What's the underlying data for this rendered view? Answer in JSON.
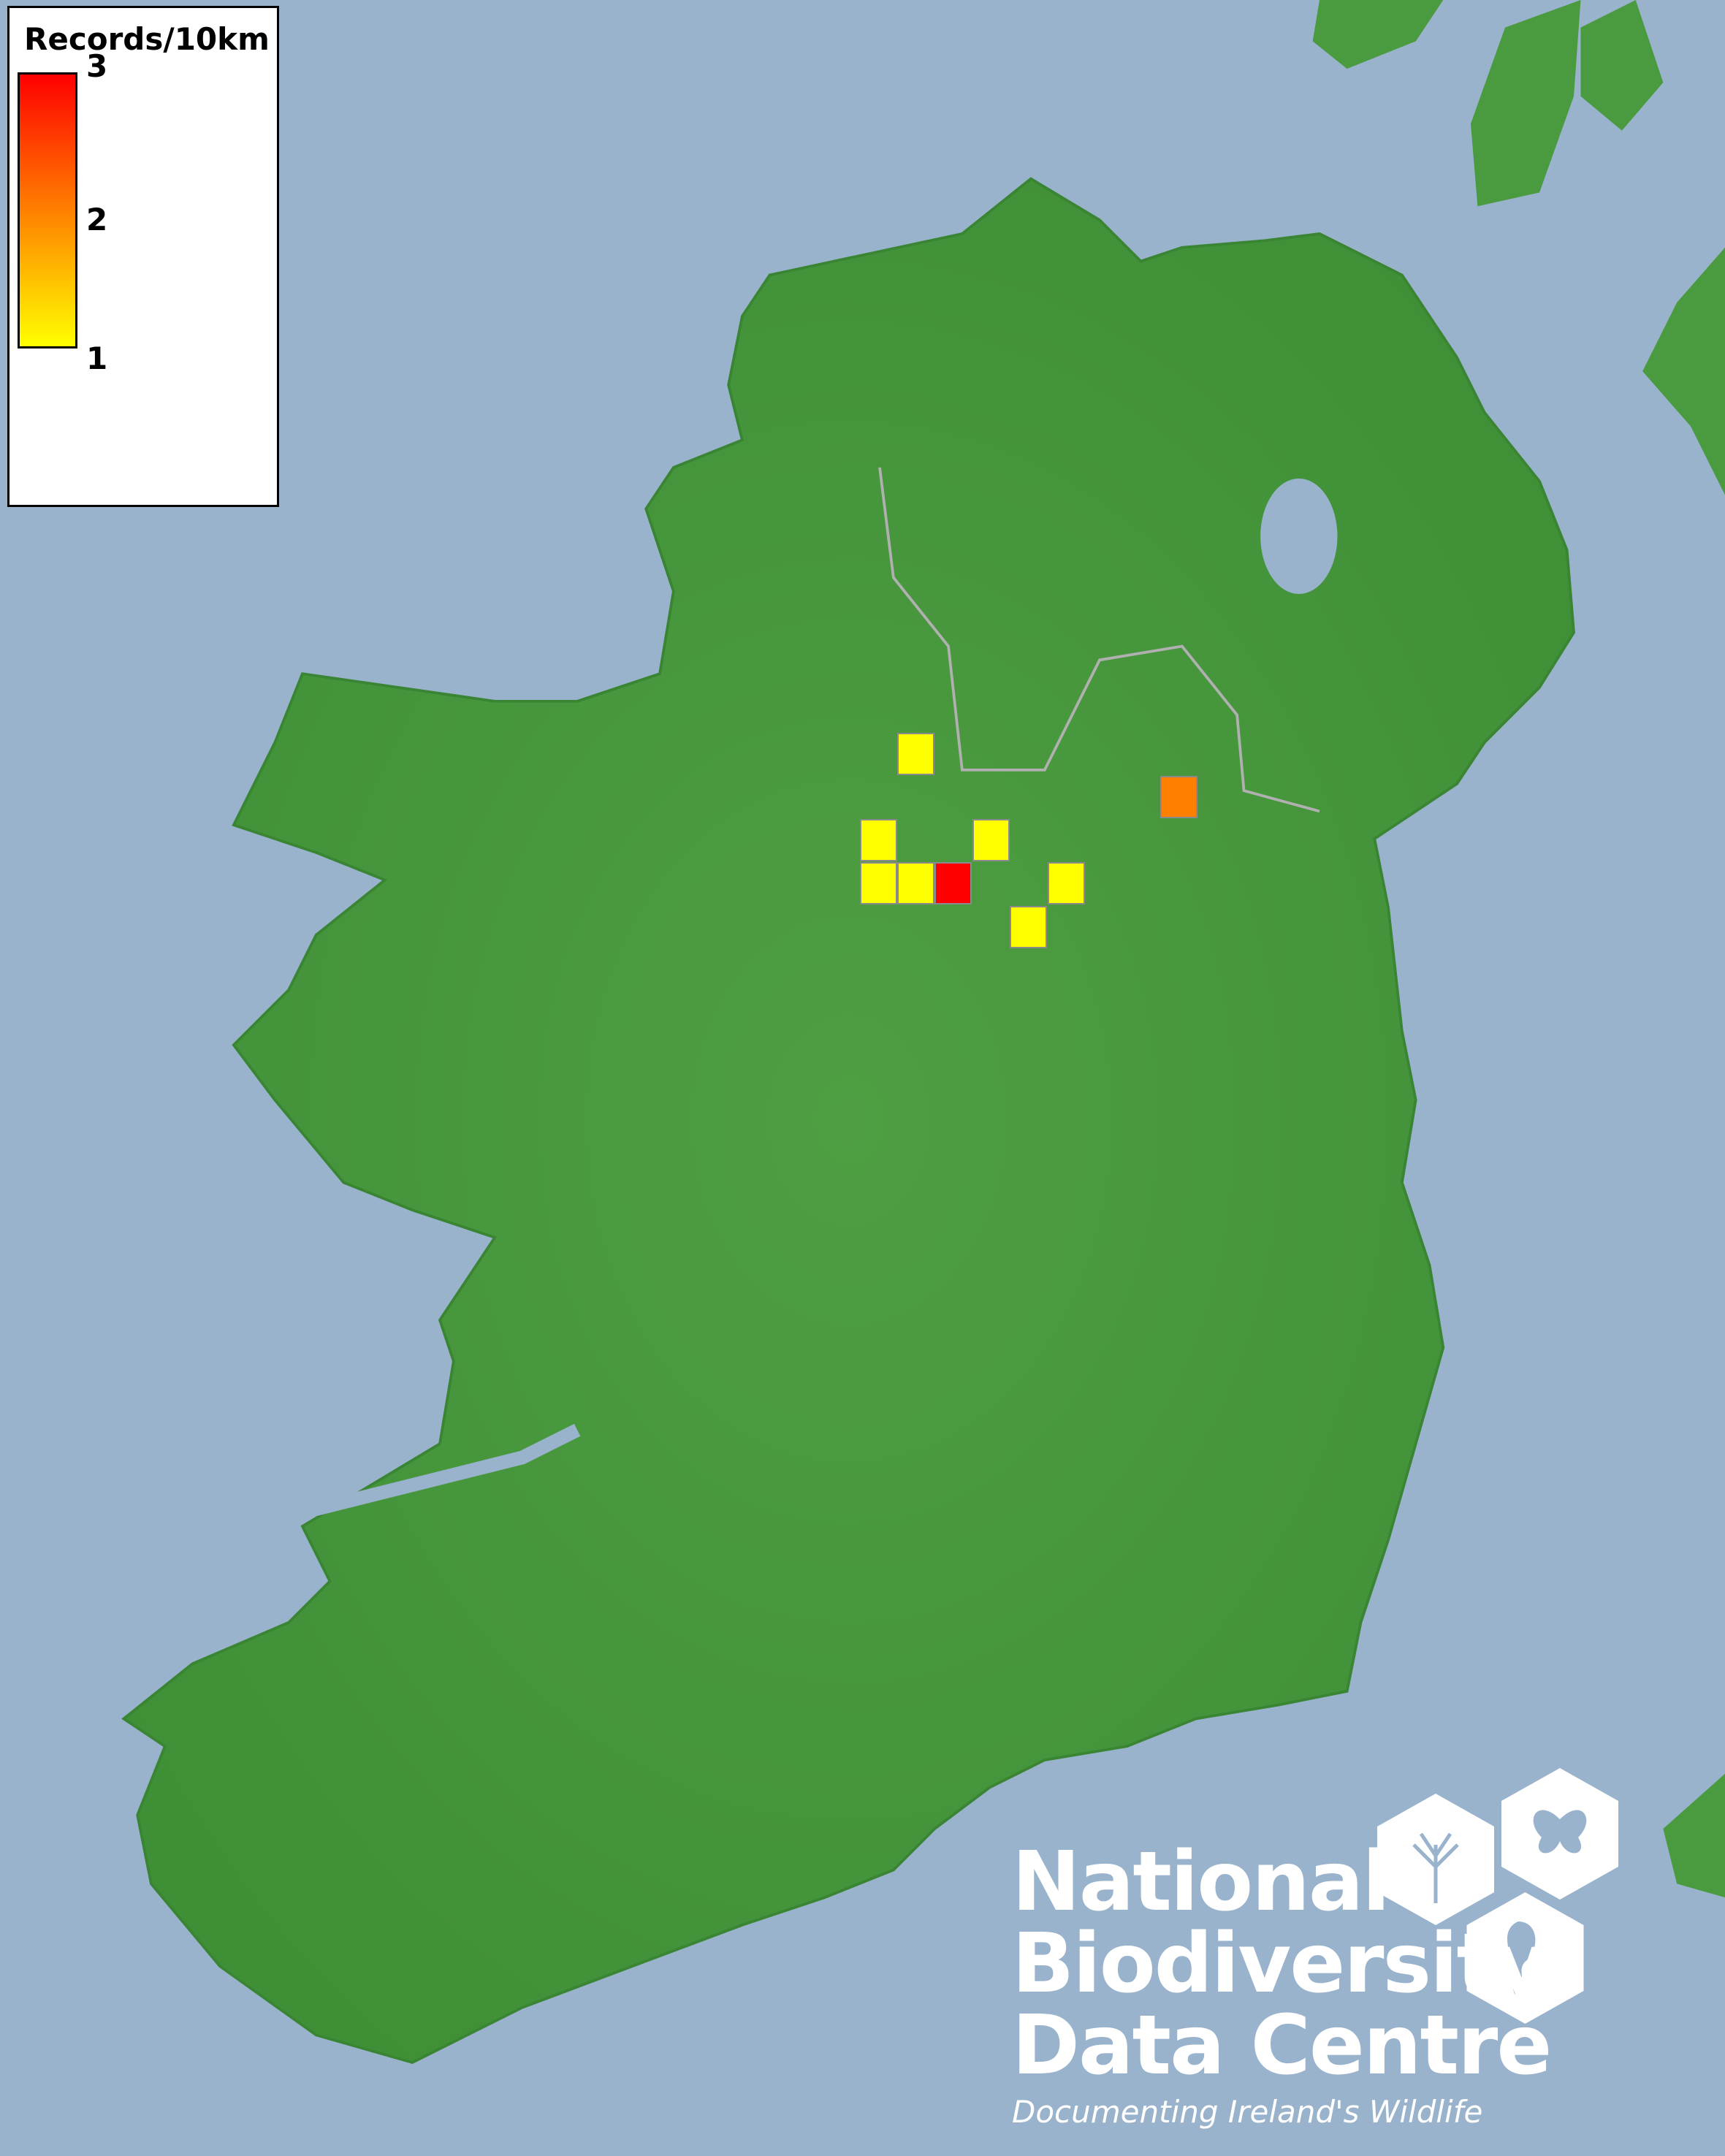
{
  "legend": {
    "title": "Records/10km",
    "ticks": [
      "3",
      "2",
      "1"
    ],
    "scale_min": 1,
    "scale_max": 3,
    "colors": {
      "low": "#ffff00",
      "mid": "#ff8000",
      "high": "#ff0000"
    }
  },
  "records": [
    {
      "value": 1,
      "color": "#ffff00"
    },
    {
      "value": 2,
      "color": "#ff8000"
    },
    {
      "value": 1,
      "color": "#ffff00"
    },
    {
      "value": 1,
      "color": "#ffff00"
    },
    {
      "value": 1,
      "color": "#ffff00"
    },
    {
      "value": 1,
      "color": "#ffff00"
    },
    {
      "value": 3,
      "color": "#ff0000"
    },
    {
      "value": 1,
      "color": "#ffff00"
    },
    {
      "value": 1,
      "color": "#ffff00"
    }
  ],
  "colors": {
    "sea": "#9ab3cd",
    "land": "#4a9a3f"
  },
  "logo": {
    "line1": "National",
    "line2": "Biodiversity",
    "line3": "Data Centre",
    "tagline": "Documenting Ireland's Wildlife"
  }
}
